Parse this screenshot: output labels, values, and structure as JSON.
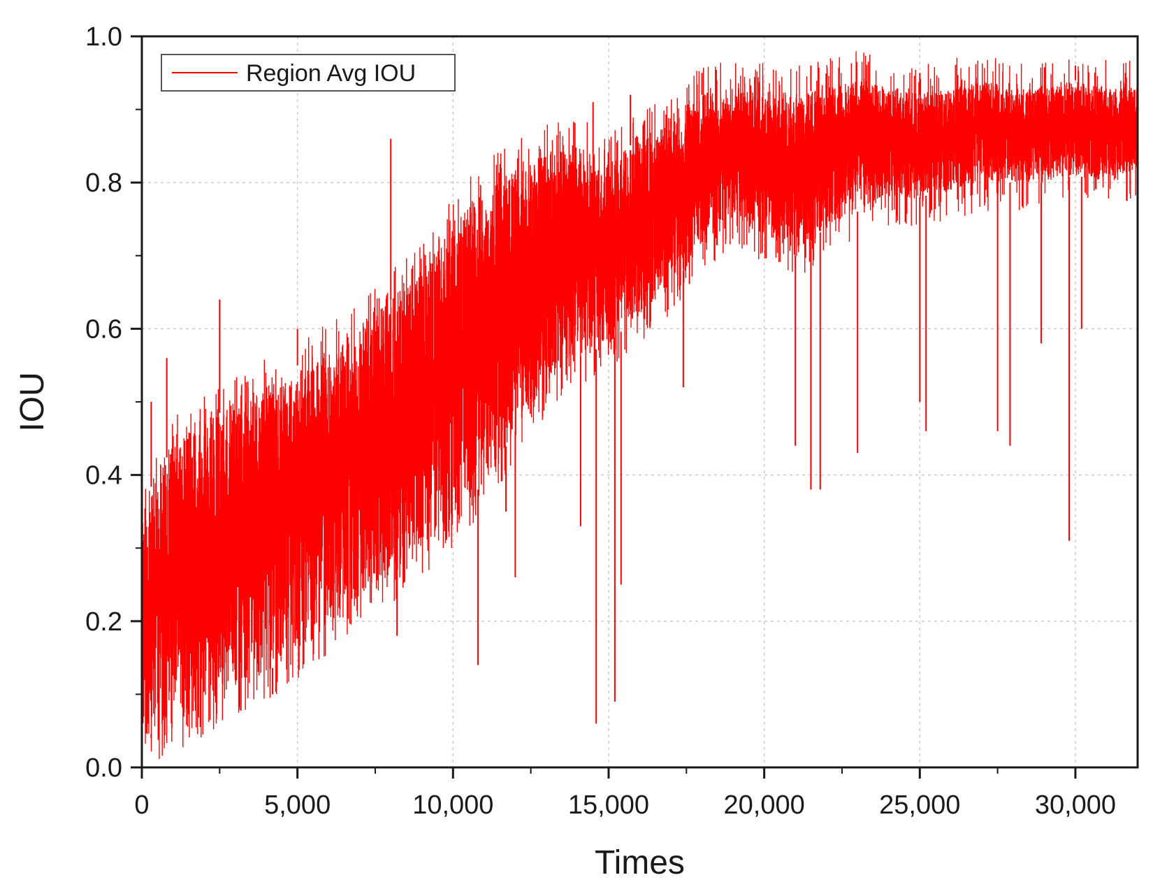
{
  "chart_data": {
    "type": "line",
    "xlabel": "Times",
    "ylabel": "IOU",
    "xlim": [
      0,
      32000
    ],
    "ylim": [
      0,
      1.0
    ],
    "x_ticks": [
      0,
      5000,
      10000,
      15000,
      20000,
      25000,
      30000
    ],
    "x_tick_labels": [
      "0",
      "5,000",
      "10,000",
      "15,000",
      "20,000",
      "25,000",
      "30,000"
    ],
    "y_ticks": [
      0,
      0.2,
      0.4,
      0.6,
      0.8,
      1.0
    ],
    "y_tick_labels": [
      "0.0",
      "0.2",
      "0.4",
      "0.6",
      "0.8",
      "1.0"
    ],
    "grid": true,
    "legend_position": "top-left",
    "series": [
      {
        "name": "Region Avg IOU",
        "color": "#ff0000",
        "x": [
          0,
          1000,
          2000,
          3000,
          4000,
          5000,
          6000,
          7000,
          8000,
          9000,
          10000,
          11000,
          12000,
          13000,
          14000,
          15000,
          16000,
          17000,
          18000,
          19000,
          20000,
          21000,
          22000,
          23000,
          24000,
          25000,
          26000,
          27000,
          28000,
          29000,
          30000,
          31000,
          32000
        ],
        "upper": [
          0.36,
          0.44,
          0.47,
          0.5,
          0.52,
          0.55,
          0.57,
          0.6,
          0.64,
          0.68,
          0.74,
          0.79,
          0.82,
          0.84,
          0.85,
          0.83,
          0.86,
          0.88,
          0.92,
          0.93,
          0.93,
          0.92,
          0.93,
          0.94,
          0.93,
          0.92,
          0.93,
          0.94,
          0.93,
          0.93,
          0.94,
          0.93,
          0.93
        ],
        "lower": [
          0.04,
          0.06,
          0.08,
          0.11,
          0.13,
          0.16,
          0.19,
          0.23,
          0.26,
          0.3,
          0.34,
          0.39,
          0.46,
          0.52,
          0.56,
          0.58,
          0.62,
          0.66,
          0.71,
          0.75,
          0.73,
          0.7,
          0.74,
          0.76,
          0.78,
          0.78,
          0.79,
          0.8,
          0.8,
          0.8,
          0.81,
          0.8,
          0.82
        ],
        "dips": [
          {
            "x": 300,
            "y": 0.04
          },
          {
            "x": 4200,
            "y": 0.1
          },
          {
            "x": 8200,
            "y": 0.18
          },
          {
            "x": 10800,
            "y": 0.14
          },
          {
            "x": 11700,
            "y": 0.35
          },
          {
            "x": 12000,
            "y": 0.26
          },
          {
            "x": 14100,
            "y": 0.33
          },
          {
            "x": 14600,
            "y": 0.06
          },
          {
            "x": 15200,
            "y": 0.09
          },
          {
            "x": 15400,
            "y": 0.25
          },
          {
            "x": 17400,
            "y": 0.52
          },
          {
            "x": 21000,
            "y": 0.44
          },
          {
            "x": 21500,
            "y": 0.38
          },
          {
            "x": 21800,
            "y": 0.38
          },
          {
            "x": 23000,
            "y": 0.43
          },
          {
            "x": 25000,
            "y": 0.5
          },
          {
            "x": 25200,
            "y": 0.46
          },
          {
            "x": 27500,
            "y": 0.46
          },
          {
            "x": 27900,
            "y": 0.44
          },
          {
            "x": 28900,
            "y": 0.58
          },
          {
            "x": 29800,
            "y": 0.31
          },
          {
            "x": 30200,
            "y": 0.6
          }
        ],
        "spikes": [
          {
            "x": 300,
            "y": 0.5
          },
          {
            "x": 800,
            "y": 0.56
          },
          {
            "x": 2500,
            "y": 0.64
          },
          {
            "x": 5000,
            "y": 0.6
          },
          {
            "x": 8000,
            "y": 0.86
          },
          {
            "x": 14500,
            "y": 0.91
          },
          {
            "x": 15700,
            "y": 0.92
          },
          {
            "x": 18000,
            "y": 0.95
          },
          {
            "x": 21500,
            "y": 0.96
          },
          {
            "x": 25000,
            "y": 0.95
          },
          {
            "x": 30000,
            "y": 0.96
          },
          {
            "x": 32000,
            "y": 0.96
          }
        ]
      }
    ]
  }
}
